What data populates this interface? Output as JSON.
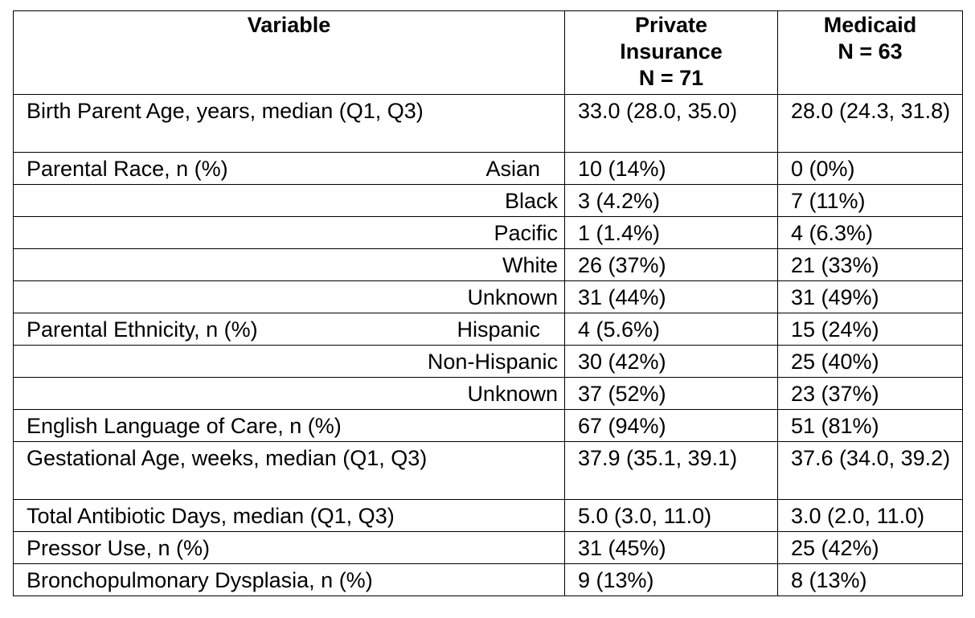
{
  "table": {
    "headers": [
      {
        "lines": [
          "Variable"
        ]
      },
      {
        "lines": [
          "Private",
          "Insurance",
          "N = 71"
        ]
      },
      {
        "lines": [
          "Medicaid",
          "N = 63"
        ]
      }
    ],
    "rows": [
      {
        "variable": "Birth Parent Age, years, median (Q1, Q3)",
        "category": "",
        "private": "33.0 (28.0, 35.0)",
        "medicaid": "28.0 (24.3, 31.8)"
      },
      {
        "variable": "Parental Race, n (%)",
        "category": "Asian",
        "private": "10 (14%)",
        "medicaid": "0 (0%)"
      },
      {
        "variable": "",
        "category": "Black",
        "private": "3 (4.2%)",
        "medicaid": "7 (11%)"
      },
      {
        "variable": "",
        "category": "Pacific",
        "private": "1 (1.4%)",
        "medicaid": "4 (6.3%)"
      },
      {
        "variable": "",
        "category": "White",
        "private": "26 (37%)",
        "medicaid": "21 (33%)"
      },
      {
        "variable": "",
        "category": "Unknown",
        "private": "31 (44%)",
        "medicaid": "31 (49%)"
      },
      {
        "variable": "Parental Ethnicity, n (%)",
        "category": "Hispanic",
        "private": "4 (5.6%)",
        "medicaid": "15 (24%)"
      },
      {
        "variable": "",
        "category": "Non-Hispanic",
        "private": "30 (42%)",
        "medicaid": "25 (40%)"
      },
      {
        "variable": "",
        "category": "Unknown",
        "private": "37 (52%)",
        "medicaid": "23 (37%)"
      },
      {
        "variable": "English Language of Care, n (%)",
        "category": "",
        "private": "67 (94%)",
        "medicaid": "51 (81%)"
      },
      {
        "variable": "Gestational Age, weeks, median (Q1, Q3)",
        "category": "",
        "private": "37.9 (35.1, 39.1)",
        "medicaid": "37.6 (34.0, 39.2)"
      },
      {
        "variable": "Total Antibiotic Days, median (Q1, Q3)",
        "category": "",
        "private": "5.0 (3.0, 11.0)",
        "medicaid": "3.0 (2.0, 11.0)"
      },
      {
        "variable": "Pressor Use, n (%)",
        "category": "",
        "private": "31 (45%)",
        "medicaid": "25 (42%)"
      },
      {
        "variable": "Bronchopulmonary Dysplasia, n (%)",
        "category": "",
        "private": "9 (13%)",
        "medicaid": "8 (13%)"
      }
    ]
  }
}
